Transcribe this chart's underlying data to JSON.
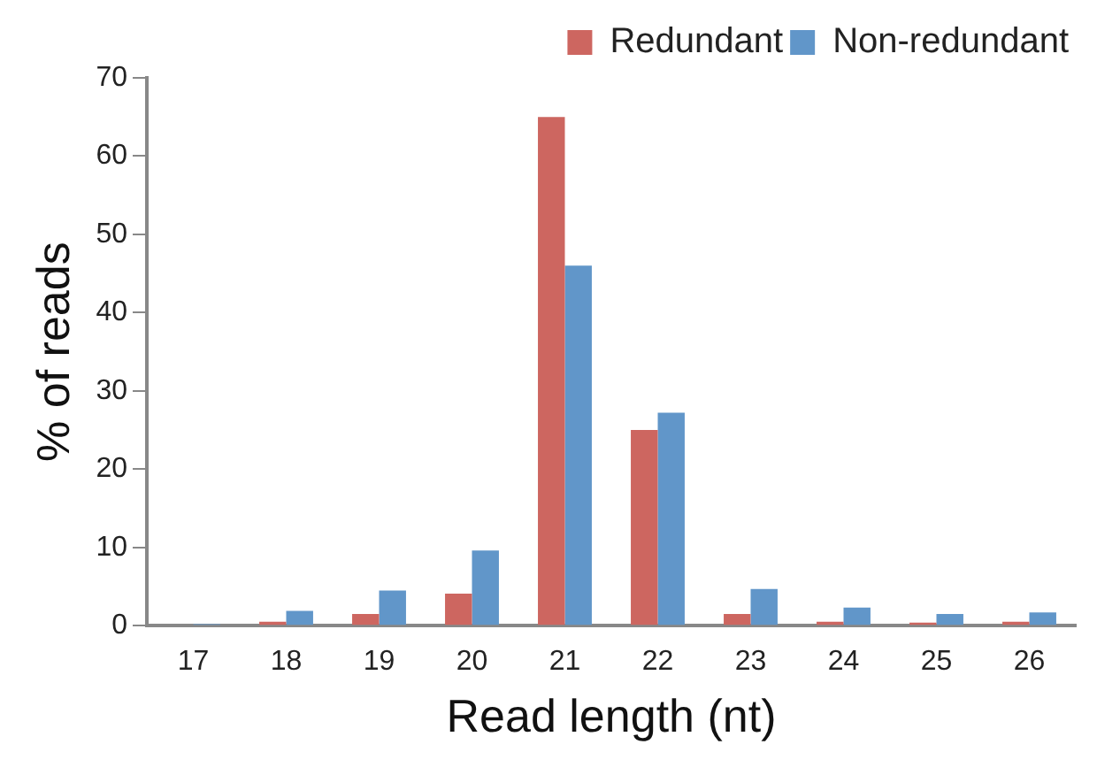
{
  "chart_data": {
    "type": "bar",
    "xlabel": "Read length (nt)",
    "ylabel": "% of reads",
    "categories": [
      "17",
      "18",
      "19",
      "20",
      "21",
      "22",
      "23",
      "24",
      "25",
      "26"
    ],
    "series": [
      {
        "name": "Redundant",
        "color": "#cd6660",
        "values": [
          0.1,
          0.5,
          1.5,
          4.1,
          65,
          25,
          1.5,
          0.5,
          0.4,
          0.5
        ]
      },
      {
        "name": "Non-redundant",
        "color": "#6196c9",
        "values": [
          0.2,
          1.9,
          4.5,
          9.6,
          46,
          27.2,
          4.7,
          2.3,
          1.5,
          1.7
        ]
      }
    ],
    "ylim": [
      0,
      70
    ],
    "yticks": [
      0,
      10,
      20,
      30,
      40,
      50,
      60,
      70
    ],
    "grid": false,
    "legend": "top right"
  }
}
